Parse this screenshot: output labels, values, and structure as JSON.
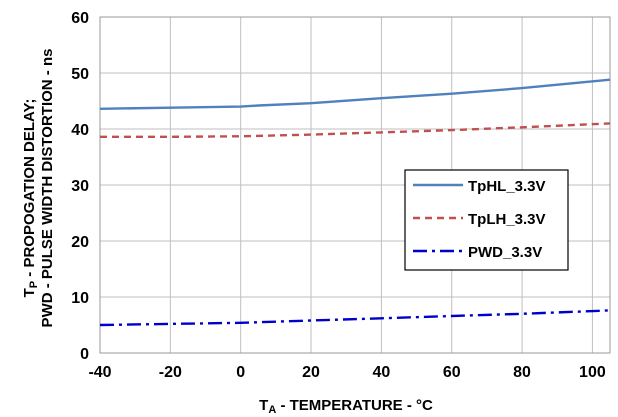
{
  "chart_data": {
    "type": "line",
    "ylabel_line1": "PWD - PULSE WIDTH DISTORTION - ns",
    "ylabel_line2_main": "T",
    "ylabel_line2_sub": "P",
    "ylabel_line2_rest": " - PROPOGATION DELAY;",
    "xlabel_main": "T",
    "xlabel_sub": "A",
    "xlabel_rest": " - TEMPERATURE - °C",
    "xlim": [
      -40,
      105
    ],
    "ylim": [
      0,
      60
    ],
    "x_ticks": [
      "-40",
      "-20",
      "0",
      "20",
      "40",
      "60",
      "80",
      "100"
    ],
    "y_ticks": [
      "0",
      "10",
      "20",
      "30",
      "40",
      "50",
      "60"
    ],
    "grid": true,
    "legend_position": "center-right",
    "series": [
      {
        "name": "TpHL_3.3V",
        "color": "#4f81bd",
        "style": "solid",
        "x": [
          -40,
          -20,
          0,
          5,
          20,
          40,
          60,
          80,
          105
        ],
        "y": [
          43.6,
          43.8,
          44.0,
          44.2,
          44.6,
          45.5,
          46.3,
          47.3,
          48.8
        ]
      },
      {
        "name": "TpLH_3.3V",
        "color": "#c0504d",
        "style": "dashed",
        "x": [
          -40,
          -20,
          0,
          20,
          40,
          60,
          80,
          105
        ],
        "y": [
          38.6,
          38.6,
          38.7,
          39.0,
          39.4,
          39.8,
          40.3,
          41.0
        ]
      },
      {
        "name": "PWD_3.3V",
        "color": "#0000cc",
        "style": "dashdot",
        "x": [
          -40,
          -20,
          0,
          20,
          40,
          60,
          80,
          105
        ],
        "y": [
          5.0,
          5.2,
          5.4,
          5.8,
          6.2,
          6.6,
          7.0,
          7.6
        ]
      }
    ]
  }
}
